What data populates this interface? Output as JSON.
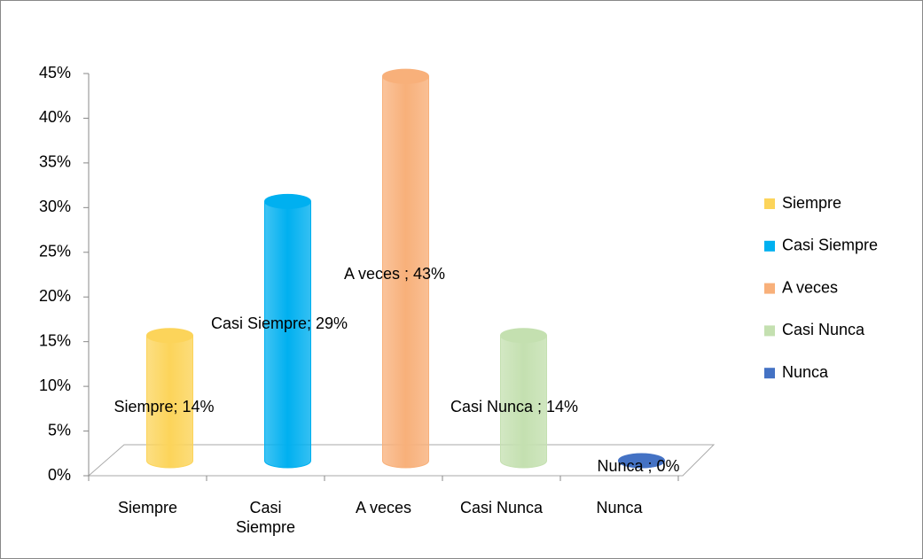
{
  "chart_data": {
    "type": "bar",
    "categories": [
      "Siempre",
      "Casi Siempre",
      "A veces",
      "Casi Nunca",
      "Nunca"
    ],
    "series": [
      {
        "name": "Siempre",
        "color": "#fcd45a"
      },
      {
        "name": "Casi Siempre",
        "color": "#00b0f0"
      },
      {
        "name": "A veces",
        "color": "#f8b07a"
      },
      {
        "name": "Casi Nunca",
        "color": "#c4e0b0"
      },
      {
        "name": "Nunca",
        "color": "#4472c4"
      }
    ],
    "values": [
      14,
      29,
      43,
      14,
      0
    ],
    "value_labels": [
      "Siempre; 14%",
      "Casi Siempre; 29%",
      "A veces ; 43%",
      "Casi Nunca ; 14%",
      "Nunca ; 0%"
    ],
    "ylim": [
      0,
      45
    ],
    "yticks": [
      {
        "value": 0,
        "label": "0%"
      },
      {
        "value": 5,
        "label": "5%"
      },
      {
        "value": 10,
        "label": "10%"
      },
      {
        "value": 15,
        "label": "15%"
      },
      {
        "value": 20,
        "label": "20%"
      },
      {
        "value": 25,
        "label": "25%"
      },
      {
        "value": 30,
        "label": "30%"
      },
      {
        "value": 35,
        "label": "35%"
      },
      {
        "value": 40,
        "label": "40%"
      },
      {
        "value": 45,
        "label": "45%"
      }
    ],
    "legend": "right"
  }
}
